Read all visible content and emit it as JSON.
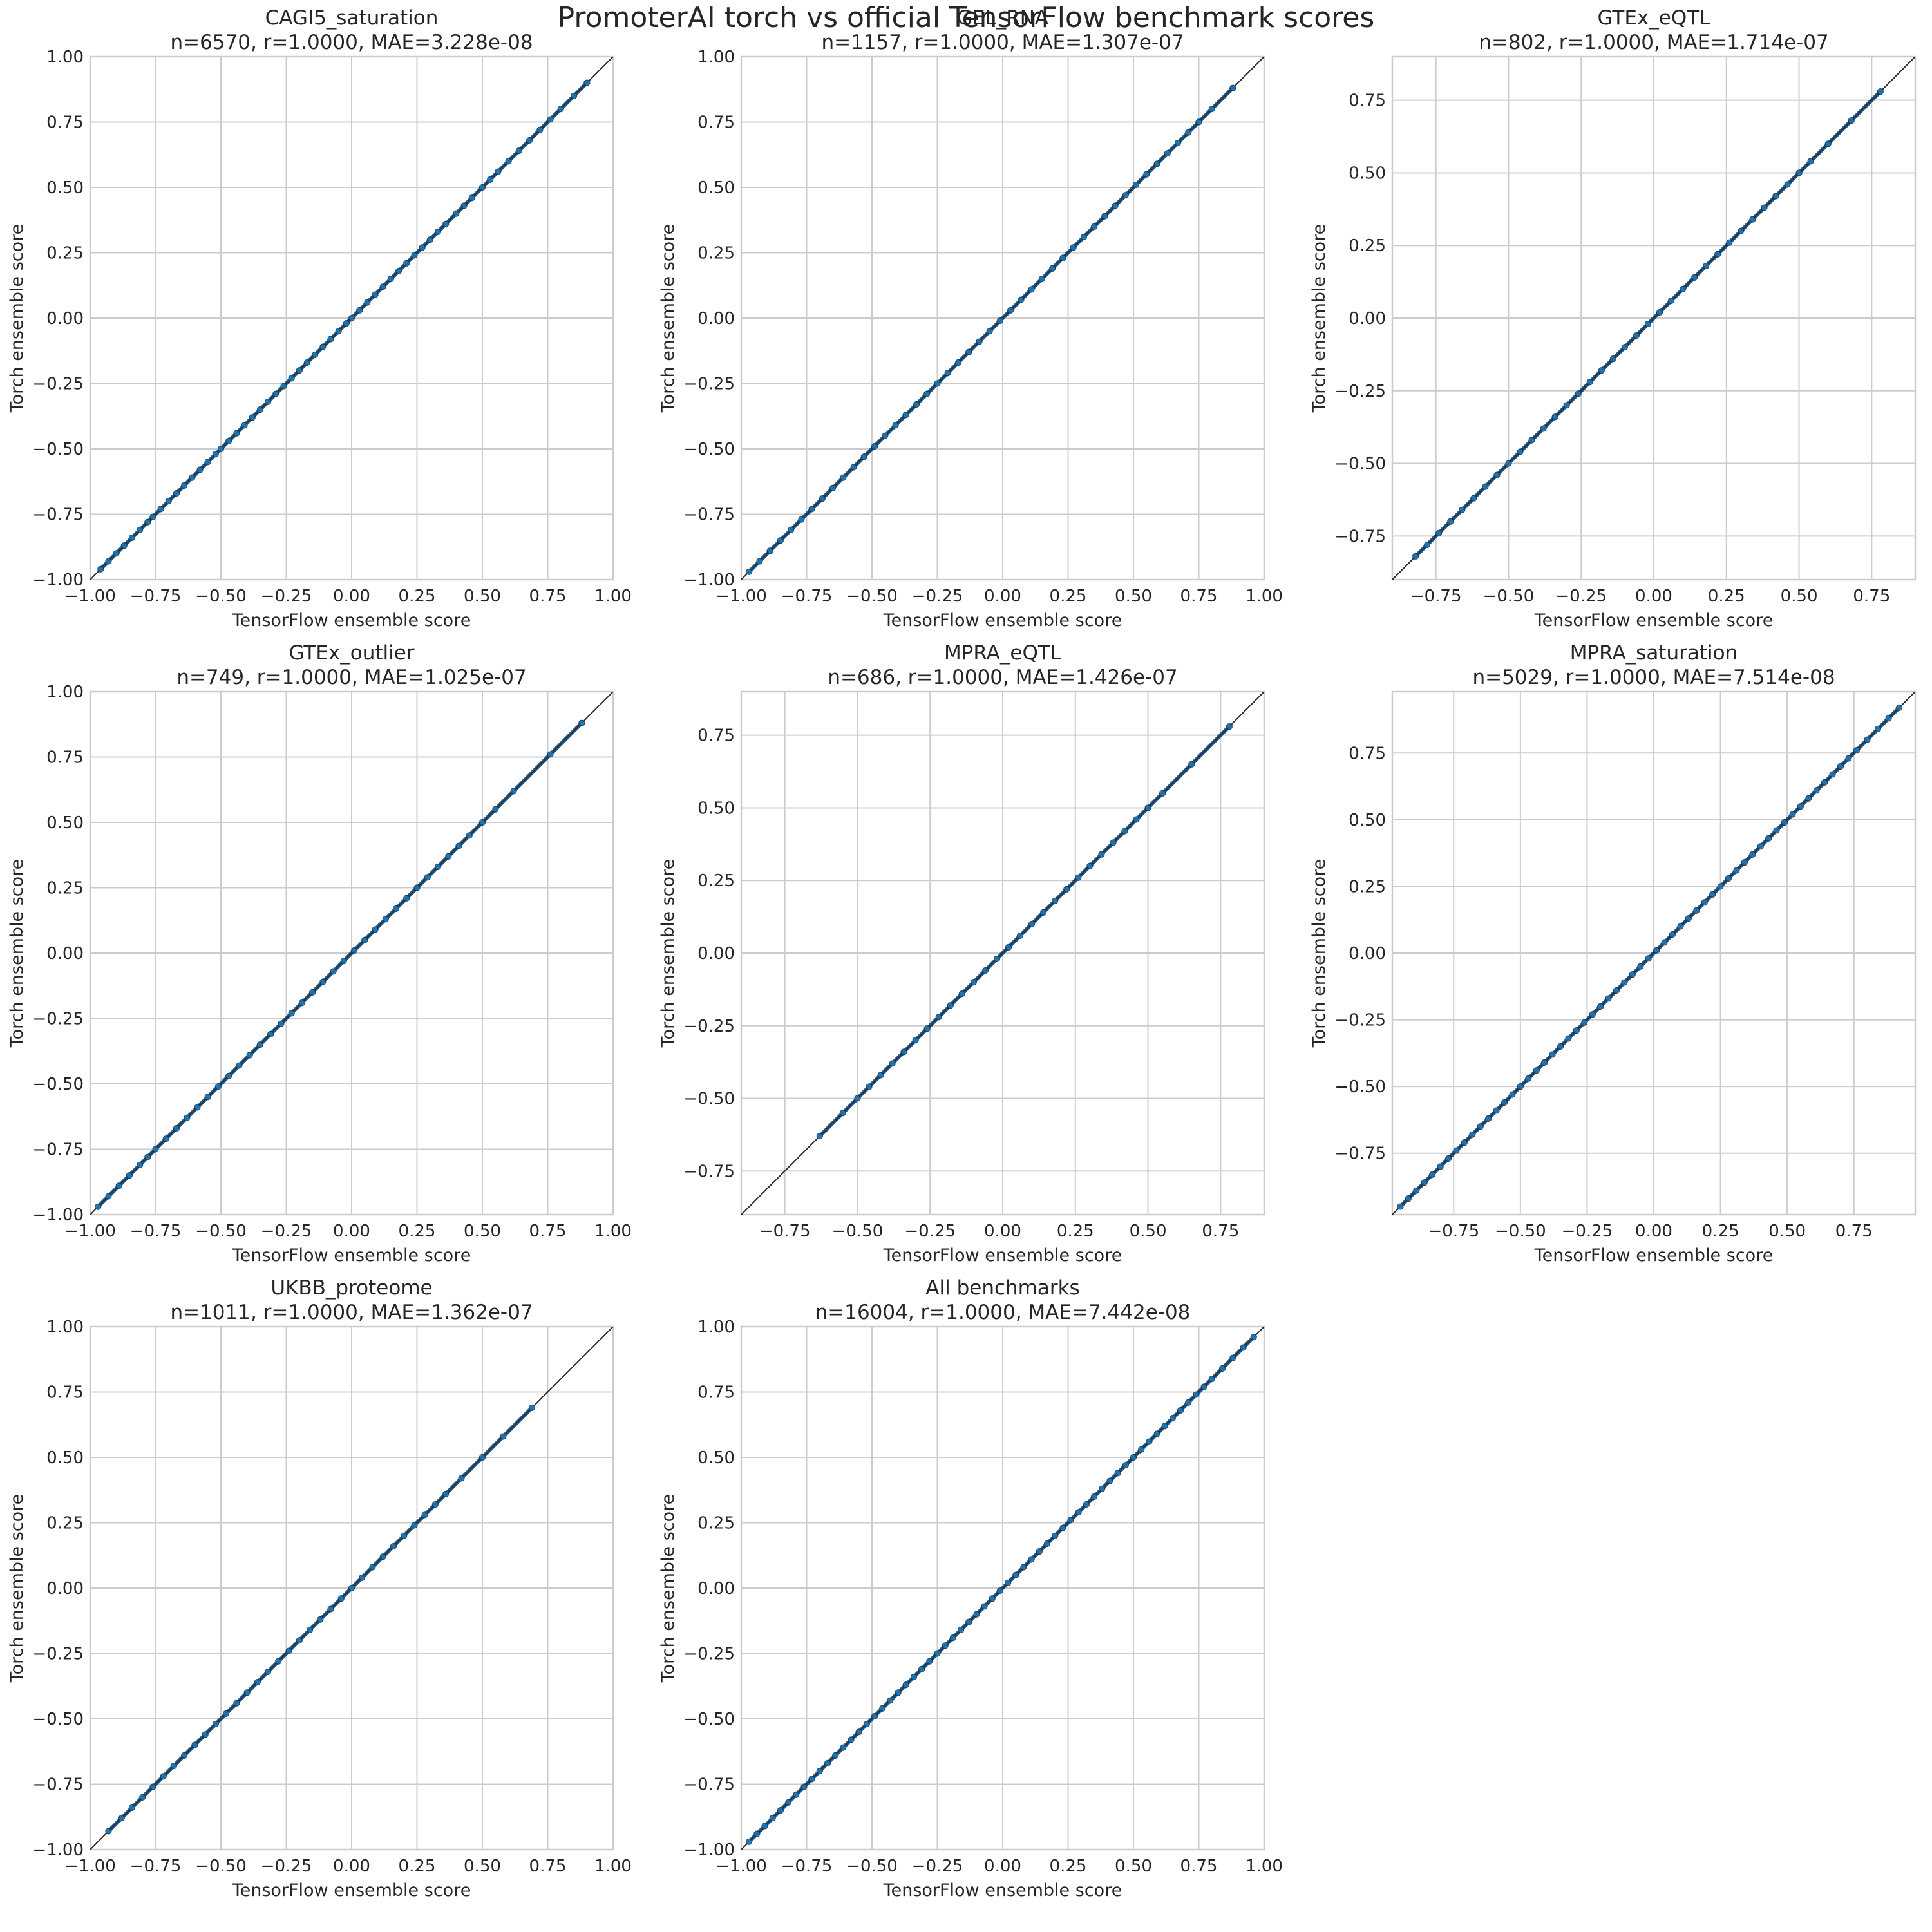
{
  "figure": {
    "title": "PromoterAI torch vs official TensorFlow benchmark scores"
  },
  "colors": {
    "point": "#1f77b4",
    "point_dark": "#0b3a62",
    "identity_line": "#262626",
    "grid": "#cccccc",
    "axes_frame": "#cccccc",
    "text": "#262626"
  },
  "chart_data": [
    {
      "type": "scatter",
      "name": "CAGI5_saturation",
      "subtitle": "n=6570, r=1.0000, MAE=3.228e-08",
      "xlabel": "TensorFlow ensemble score",
      "ylabel": "Torch ensemble score",
      "xlim": [
        -1.0,
        1.0
      ],
      "ylim": [
        -1.0,
        1.0
      ],
      "ticks": [
        -1.0,
        -0.75,
        -0.5,
        -0.25,
        0.0,
        0.25,
        0.5,
        0.75,
        1.0
      ],
      "tick_labels": [
        "−1.00",
        "−0.75",
        "−0.50",
        "−0.25",
        "0.00",
        "0.25",
        "0.50",
        "0.75",
        "1.00"
      ],
      "points": [
        -0.96,
        -0.93,
        -0.9,
        -0.87,
        -0.84,
        -0.81,
        -0.78,
        -0.76,
        -0.73,
        -0.7,
        -0.67,
        -0.64,
        -0.61,
        -0.58,
        -0.55,
        -0.52,
        -0.5,
        -0.47,
        -0.44,
        -0.41,
        -0.38,
        -0.35,
        -0.32,
        -0.29,
        -0.26,
        -0.23,
        -0.2,
        -0.17,
        -0.14,
        -0.11,
        -0.08,
        -0.05,
        -0.02,
        0.0,
        0.03,
        0.06,
        0.09,
        0.12,
        0.15,
        0.18,
        0.21,
        0.24,
        0.27,
        0.3,
        0.33,
        0.36,
        0.4,
        0.43,
        0.46,
        0.5,
        0.53,
        0.56,
        0.6,
        0.64,
        0.68,
        0.72,
        0.76,
        0.8,
        0.85,
        0.9
      ],
      "grid": true
    },
    {
      "type": "scatter",
      "name": "GEL_RNA",
      "subtitle": "n=1157, r=1.0000, MAE=1.307e-07",
      "xlabel": "TensorFlow ensemble score",
      "ylabel": "Torch ensemble score",
      "xlim": [
        -1.0,
        1.0
      ],
      "ylim": [
        -1.0,
        1.0
      ],
      "ticks": [
        -1.0,
        -0.75,
        -0.5,
        -0.25,
        0.0,
        0.25,
        0.5,
        0.75,
        1.0
      ],
      "tick_labels": [
        "−1.00",
        "−0.75",
        "−0.50",
        "−0.25",
        "0.00",
        "0.25",
        "0.50",
        "0.75",
        "1.00"
      ],
      "points": [
        -0.97,
        -0.93,
        -0.89,
        -0.85,
        -0.81,
        -0.77,
        -0.73,
        -0.69,
        -0.65,
        -0.61,
        -0.57,
        -0.53,
        -0.49,
        -0.45,
        -0.41,
        -0.37,
        -0.33,
        -0.29,
        -0.25,
        -0.21,
        -0.17,
        -0.13,
        -0.09,
        -0.05,
        -0.01,
        0.03,
        0.07,
        0.11,
        0.15,
        0.19,
        0.23,
        0.27,
        0.31,
        0.35,
        0.39,
        0.43,
        0.47,
        0.51,
        0.55,
        0.59,
        0.63,
        0.67,
        0.71,
        0.75,
        0.8,
        0.88
      ],
      "grid": true
    },
    {
      "type": "scatter",
      "name": "GTEx_eQTL",
      "subtitle": "n=802, r=1.0000, MAE=1.714e-07",
      "xlabel": "TensorFlow ensemble score",
      "ylabel": "Torch ensemble score",
      "xlim": [
        -0.9,
        0.9
      ],
      "ylim": [
        -0.9,
        0.9
      ],
      "ticks": [
        -0.75,
        -0.5,
        -0.25,
        0.0,
        0.25,
        0.5,
        0.75
      ],
      "tick_labels": [
        "−0.75",
        "−0.50",
        "−0.25",
        "0.00",
        "0.25",
        "0.50",
        "0.75"
      ],
      "points": [
        -0.82,
        -0.78,
        -0.74,
        -0.7,
        -0.66,
        -0.62,
        -0.58,
        -0.54,
        -0.5,
        -0.46,
        -0.42,
        -0.38,
        -0.34,
        -0.3,
        -0.26,
        -0.22,
        -0.18,
        -0.14,
        -0.1,
        -0.06,
        -0.02,
        0.02,
        0.06,
        0.1,
        0.14,
        0.18,
        0.22,
        0.26,
        0.3,
        0.34,
        0.38,
        0.42,
        0.46,
        0.5,
        0.54,
        0.6,
        0.68,
        0.78
      ],
      "grid": true
    },
    {
      "type": "scatter",
      "name": "GTEx_outlier",
      "subtitle": "n=749, r=1.0000, MAE=1.025e-07",
      "xlabel": "TensorFlow ensemble score",
      "ylabel": "Torch ensemble score",
      "xlim": [
        -1.0,
        1.0
      ],
      "ylim": [
        -1.0,
        1.0
      ],
      "ticks": [
        -1.0,
        -0.75,
        -0.5,
        -0.25,
        0.0,
        0.25,
        0.5,
        0.75,
        1.0
      ],
      "tick_labels": [
        "−1.00",
        "−0.75",
        "−0.50",
        "−0.25",
        "0.00",
        "0.25",
        "0.50",
        "0.75",
        "1.00"
      ],
      "points": [
        -0.97,
        -0.93,
        -0.89,
        -0.85,
        -0.81,
        -0.78,
        -0.75,
        -0.71,
        -0.67,
        -0.63,
        -0.59,
        -0.55,
        -0.51,
        -0.47,
        -0.43,
        -0.39,
        -0.35,
        -0.31,
        -0.27,
        -0.23,
        -0.19,
        -0.15,
        -0.11,
        -0.07,
        -0.03,
        0.01,
        0.05,
        0.09,
        0.13,
        0.17,
        0.21,
        0.25,
        0.29,
        0.33,
        0.37,
        0.41,
        0.45,
        0.5,
        0.55,
        0.62,
        0.76,
        0.88
      ],
      "grid": true
    },
    {
      "type": "scatter",
      "name": "MPRA_eQTL",
      "subtitle": "n=686, r=1.0000, MAE=1.426e-07",
      "xlabel": "TensorFlow ensemble score",
      "ylabel": "Torch ensemble score",
      "xlim": [
        -0.9,
        0.9
      ],
      "ylim": [
        -0.9,
        0.9
      ],
      "ticks": [
        -0.75,
        -0.5,
        -0.25,
        0.0,
        0.25,
        0.5,
        0.75
      ],
      "tick_labels": [
        "−0.75",
        "−0.50",
        "−0.25",
        "0.00",
        "0.25",
        "0.50",
        "0.75"
      ],
      "points": [
        -0.63,
        -0.55,
        -0.5,
        -0.46,
        -0.42,
        -0.38,
        -0.34,
        -0.3,
        -0.26,
        -0.22,
        -0.18,
        -0.14,
        -0.1,
        -0.06,
        -0.02,
        0.02,
        0.06,
        0.1,
        0.14,
        0.18,
        0.22,
        0.26,
        0.3,
        0.34,
        0.38,
        0.42,
        0.46,
        0.5,
        0.55,
        0.65,
        0.78
      ],
      "grid": true
    },
    {
      "type": "scatter",
      "name": "MPRA_saturation",
      "subtitle": "n=5029, r=1.0000, MAE=7.514e-08",
      "xlabel": "TensorFlow ensemble score",
      "ylabel": "Torch ensemble score",
      "xlim": [
        -0.98,
        0.98
      ],
      "ylim": [
        -0.98,
        0.98
      ],
      "ticks": [
        -0.75,
        -0.5,
        -0.25,
        0.0,
        0.25,
        0.5,
        0.75
      ],
      "tick_labels": [
        "−0.75",
        "−0.50",
        "−0.25",
        "0.00",
        "0.25",
        "0.50",
        "0.75"
      ],
      "points": [
        -0.95,
        -0.92,
        -0.89,
        -0.86,
        -0.83,
        -0.8,
        -0.77,
        -0.74,
        -0.71,
        -0.68,
        -0.65,
        -0.62,
        -0.59,
        -0.56,
        -0.53,
        -0.5,
        -0.47,
        -0.44,
        -0.41,
        -0.38,
        -0.35,
        -0.32,
        -0.29,
        -0.26,
        -0.23,
        -0.2,
        -0.17,
        -0.14,
        -0.11,
        -0.08,
        -0.05,
        -0.02,
        0.01,
        0.04,
        0.07,
        0.1,
        0.13,
        0.16,
        0.19,
        0.22,
        0.25,
        0.28,
        0.31,
        0.34,
        0.37,
        0.4,
        0.43,
        0.46,
        0.49,
        0.52,
        0.55,
        0.58,
        0.61,
        0.64,
        0.67,
        0.7,
        0.73,
        0.76,
        0.8,
        0.84,
        0.88,
        0.92
      ],
      "grid": true
    },
    {
      "type": "scatter",
      "name": "UKBB_proteome",
      "subtitle": "n=1011, r=1.0000, MAE=1.362e-07",
      "xlabel": "TensorFlow ensemble score",
      "ylabel": "Torch ensemble score",
      "xlim": [
        -1.0,
        1.0
      ],
      "ylim": [
        -1.0,
        1.0
      ],
      "ticks": [
        -1.0,
        -0.75,
        -0.5,
        -0.25,
        0.0,
        0.25,
        0.5,
        0.75,
        1.0
      ],
      "tick_labels": [
        "−1.00",
        "−0.75",
        "−0.50",
        "−0.25",
        "0.00",
        "0.25",
        "0.50",
        "0.75",
        "1.00"
      ],
      "points": [
        -0.93,
        -0.88,
        -0.84,
        -0.8,
        -0.76,
        -0.72,
        -0.68,
        -0.64,
        -0.6,
        -0.56,
        -0.52,
        -0.48,
        -0.44,
        -0.4,
        -0.36,
        -0.32,
        -0.28,
        -0.24,
        -0.2,
        -0.16,
        -0.12,
        -0.08,
        -0.04,
        0.0,
        0.04,
        0.08,
        0.12,
        0.16,
        0.2,
        0.24,
        0.28,
        0.32,
        0.36,
        0.42,
        0.5,
        0.58,
        0.69
      ],
      "grid": true
    },
    {
      "type": "scatter",
      "name": "All benchmarks",
      "subtitle": "n=16004, r=1.0000, MAE=7.442e-08",
      "xlabel": "TensorFlow ensemble score",
      "ylabel": "Torch ensemble score",
      "xlim": [
        -1.0,
        1.0
      ],
      "ylim": [
        -1.0,
        1.0
      ],
      "ticks": [
        -1.0,
        -0.75,
        -0.5,
        -0.25,
        0.0,
        0.25,
        0.5,
        0.75,
        1.0
      ],
      "tick_labels": [
        "−1.00",
        "−0.75",
        "−0.50",
        "−0.25",
        "0.00",
        "0.25",
        "0.50",
        "0.75",
        "1.00"
      ],
      "points": [
        -0.97,
        -0.94,
        -0.91,
        -0.88,
        -0.85,
        -0.82,
        -0.79,
        -0.76,
        -0.73,
        -0.7,
        -0.67,
        -0.64,
        -0.61,
        -0.58,
        -0.55,
        -0.52,
        -0.49,
        -0.46,
        -0.43,
        -0.4,
        -0.37,
        -0.34,
        -0.31,
        -0.28,
        -0.25,
        -0.22,
        -0.19,
        -0.16,
        -0.13,
        -0.1,
        -0.07,
        -0.04,
        -0.01,
        0.02,
        0.05,
        0.08,
        0.11,
        0.14,
        0.17,
        0.2,
        0.23,
        0.26,
        0.29,
        0.32,
        0.35,
        0.38,
        0.41,
        0.44,
        0.47,
        0.5,
        0.53,
        0.56,
        0.59,
        0.62,
        0.65,
        0.68,
        0.71,
        0.74,
        0.77,
        0.8,
        0.84,
        0.88,
        0.92,
        0.96
      ],
      "grid": true
    }
  ]
}
